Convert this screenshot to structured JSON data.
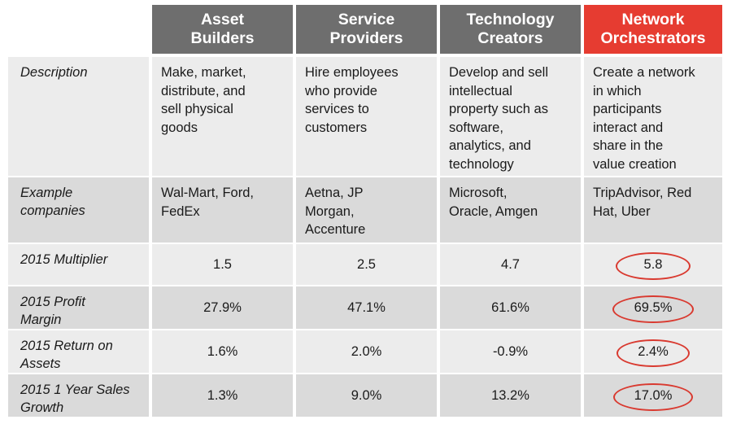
{
  "table": {
    "headers": [
      {
        "line1": "Asset",
        "line2": "Builders"
      },
      {
        "line1": "Service",
        "line2": "Providers"
      },
      {
        "line1": "Technology",
        "line2": "Creators"
      },
      {
        "line1": "Network",
        "line2": "Orchestrators"
      }
    ],
    "rows": [
      {
        "label": [
          "Description"
        ],
        "cells": [
          [
            "Make, market,",
            "distribute, and",
            "sell physical",
            "goods"
          ],
          [
            "Hire employees",
            "who provide",
            "services to",
            "customers"
          ],
          [
            "Develop and sell",
            "intellectual",
            "property such as",
            "software,",
            "analytics, and",
            "technology"
          ],
          [
            "Create a network",
            "in which",
            "participants",
            "interact and",
            "share in the",
            "value creation"
          ]
        ]
      },
      {
        "label": [
          "Example",
          "companies"
        ],
        "cells": [
          [
            "Wal-Mart, Ford,",
            "FedEx"
          ],
          [
            "Aetna, JP",
            "Morgan,",
            "Accenture"
          ],
          [
            "Microsoft,",
            "Oracle, Amgen"
          ],
          [
            "TripAdvisor, Red",
            "Hat, Uber"
          ]
        ]
      },
      {
        "label": [
          "2015 Multiplier"
        ],
        "values": [
          "1.5",
          "2.5",
          "4.7",
          "5.8"
        ]
      },
      {
        "label": [
          "2015 Profit",
          "Margin"
        ],
        "values": [
          "27.9%",
          "47.1%",
          "61.6%",
          "69.5%"
        ]
      },
      {
        "label": [
          "2015 Return on",
          "Assets"
        ],
        "values": [
          "1.6%",
          "2.0%",
          "-0.9%",
          "2.4%"
        ]
      },
      {
        "label": [
          "2015 1 Year Sales",
          "Growth"
        ],
        "values": [
          "1.3%",
          "9.0%",
          "13.2%",
          "17.0%"
        ]
      }
    ]
  },
  "colors": {
    "header_gray": "#6e6e6e",
    "header_accent": "#e63c31",
    "row_light": "#ececec",
    "row_dark": "#dadada",
    "highlight_ring": "#d93a30"
  }
}
